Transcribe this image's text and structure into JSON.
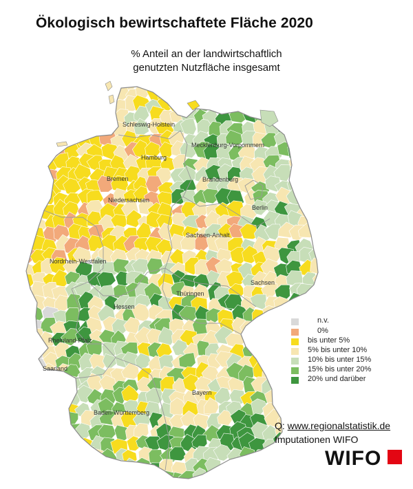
{
  "title": "Ökologisch bewirtschaftete Fläche 2020",
  "subtitle": {
    "line1": "% Anteil an der landwirtschaftlich",
    "line2": "genutzten Nutzfläche insgesamt"
  },
  "regions": [
    "Schleswig-Holstein",
    "Mecklenburg-Vorpommern",
    "Hamburg",
    "Bremen",
    "Brandenburg",
    "Niedersachsen",
    "Berlin",
    "Sachsen-Anhalt",
    "Nordrhein-Westfalen",
    "Sachsen",
    "Thüringen",
    "Hessen",
    "Rheinland-Pfalz",
    "Saarland",
    "Bayern",
    "Baden-Württemberg"
  ],
  "legend": [
    {
      "label": "n.v.",
      "color": "#d9d9d9"
    },
    {
      "label": "0%",
      "color": "#f2a97a"
    },
    {
      "label": "bis unter 5%",
      "color": "#f7dc1e"
    },
    {
      "label": "5% bis unter 10%",
      "color": "#f7e6b1"
    },
    {
      "label": "10% bis unter 15%",
      "color": "#c7deb8"
    },
    {
      "label": "15% bis unter 20%",
      "color": "#7cbd60"
    },
    {
      "label": "20% und darüber",
      "color": "#3e963f"
    }
  ],
  "source": {
    "prefix": "Q: ",
    "link": "www.regionalstatistik.de",
    "line2": "Imputationen WIFO"
  },
  "logo": {
    "text": "WIFO",
    "square_color": "#e30613"
  }
}
